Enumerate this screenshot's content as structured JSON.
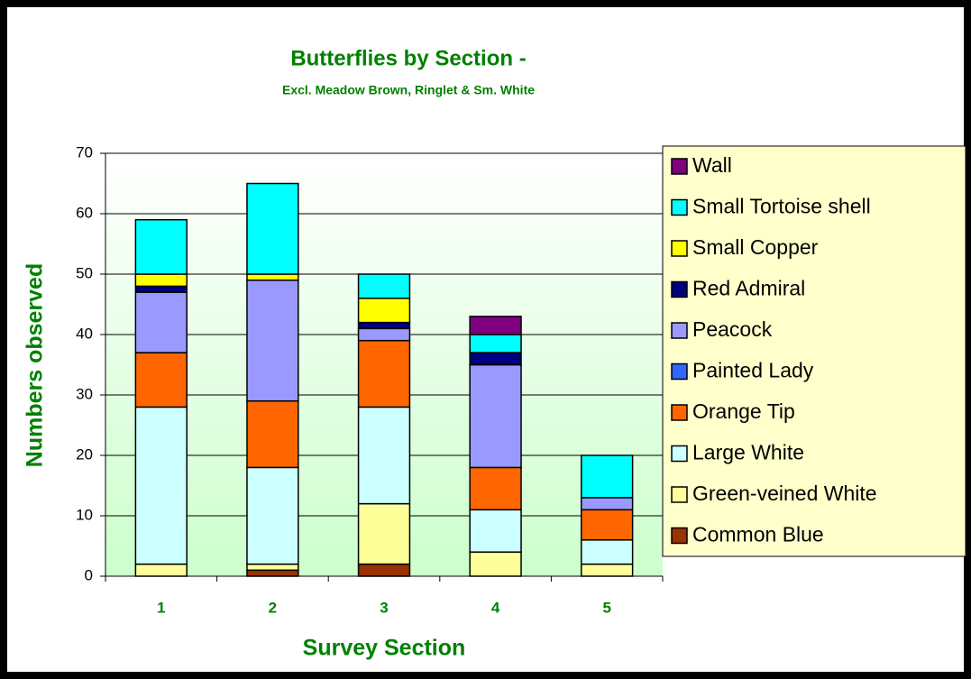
{
  "chart_data": {
    "type": "stacked_bar",
    "title": "Butterflies by Section -",
    "subtitle": "Excl. Meadow Brown, Ringlet & Sm. White",
    "x_label": "Survey Section",
    "y_label": "Numbers observed",
    "categories": [
      "1",
      "2",
      "3",
      "4",
      "5"
    ],
    "series": [
      {
        "name": "Common Blue",
        "color": "#993300",
        "values": [
          0,
          1,
          2,
          0,
          0
        ]
      },
      {
        "name": "Green-veined White",
        "color": "#ffff99",
        "values": [
          2,
          1,
          10,
          4,
          2
        ]
      },
      {
        "name": "Large White",
        "color": "#ccffff",
        "values": [
          26,
          16,
          16,
          7,
          4
        ]
      },
      {
        "name": "Orange Tip",
        "color": "#ff6600",
        "values": [
          9,
          11,
          11,
          7,
          5
        ]
      },
      {
        "name": "Painted Lady",
        "color": "#3366ff",
        "values": [
          0,
          0,
          0,
          0,
          0
        ]
      },
      {
        "name": "Peacock",
        "color": "#9999ff",
        "values": [
          10,
          20,
          2,
          17,
          2
        ]
      },
      {
        "name": "Red Admiral",
        "color": "#000080",
        "values": [
          1,
          0,
          1,
          2,
          0
        ]
      },
      {
        "name": "Small Copper",
        "color": "#ffff00",
        "values": [
          2,
          1,
          4,
          0,
          0
        ]
      },
      {
        "name": "Small Tortoise shell",
        "color": "#00ffff",
        "values": [
          9,
          15,
          4,
          3,
          7
        ]
      },
      {
        "name": "Wall",
        "color": "#800080",
        "values": [
          0,
          0,
          0,
          3,
          0
        ]
      }
    ],
    "ylim": [
      0,
      70
    ],
    "yticks": [
      0,
      10,
      20,
      30,
      40,
      50,
      60,
      70
    ],
    "grid": true,
    "legend": "right"
  }
}
